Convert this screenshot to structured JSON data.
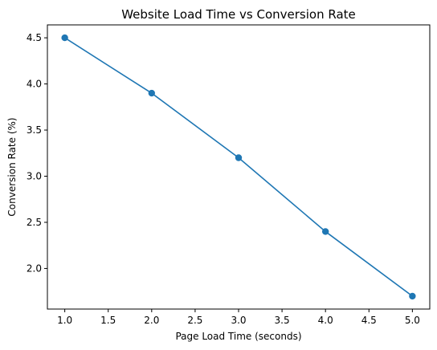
{
  "chart_data": {
    "type": "line",
    "title": "Website Load Time vs Conversion Rate",
    "xlabel": "Page Load Time (seconds)",
    "ylabel": "Conversion Rate (%)",
    "x": [
      1.0,
      2.0,
      3.0,
      4.0,
      5.0
    ],
    "series": [
      {
        "values": [
          4.5,
          3.9,
          3.2,
          2.4,
          1.7
        ],
        "color": "#1f77b4"
      }
    ],
    "xlim": [
      0.8,
      5.2
    ],
    "ylim": [
      1.56,
      4.64
    ],
    "xticks": [
      "1.0",
      "1.5",
      "2.0",
      "2.5",
      "3.0",
      "3.5",
      "4.0",
      "4.5",
      "5.0"
    ],
    "yticks": [
      "2.0",
      "2.5",
      "3.0",
      "3.5",
      "4.0",
      "4.5"
    ],
    "grid": false,
    "marker": "circle"
  }
}
